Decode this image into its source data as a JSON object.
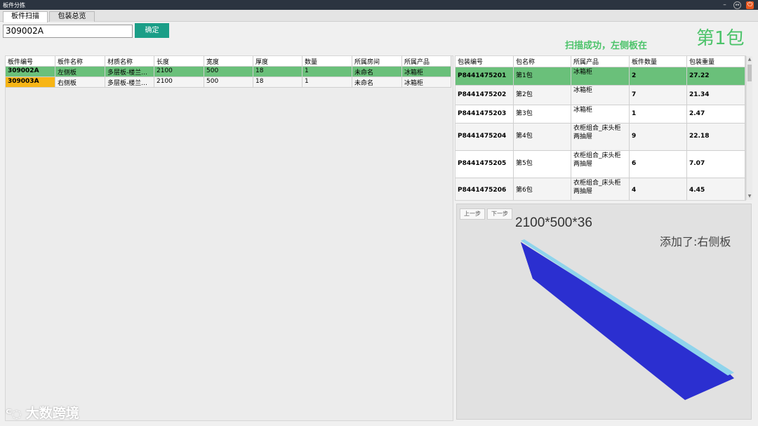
{
  "window": {
    "title": "板件分拣"
  },
  "tabs": [
    {
      "label": "板件扫描"
    },
    {
      "label": "包装总览"
    }
  ],
  "scan": {
    "value": "309002A",
    "confirm_label": "确定"
  },
  "status": {
    "message": "扫描成功，左侧板在",
    "package": "第1包"
  },
  "boards": {
    "headers": [
      "板件编号",
      "板件名称",
      "材质名称",
      "长度",
      "宽度",
      "厚度",
      "数量",
      "所属房间",
      "所属产品"
    ],
    "rows": [
      [
        "309002A",
        "左侧板",
        "多层板-楼兰...",
        "2100",
        "500",
        "18",
        "1",
        "未命名",
        "冰箱柜"
      ],
      [
        "309003A",
        "右侧板",
        "多层板-楼兰...",
        "2100",
        "500",
        "18",
        "1",
        "未命名",
        "冰箱柜"
      ]
    ]
  },
  "packages": {
    "headers": [
      "包装编号",
      "包名称",
      "所属产品",
      "板件数量",
      "包装重量"
    ],
    "rows": [
      [
        "P8441475201",
        "第1包",
        "冰箱柜",
        "2",
        "27.22"
      ],
      [
        "P8441475202",
        "第2包",
        "冰箱柜",
        "7",
        "21.34"
      ],
      [
        "P8441475203",
        "第3包",
        "冰箱柜",
        "1",
        "2.47"
      ],
      [
        "P8441475204",
        "第4包",
        "衣柜组合_床头柜两抽屉",
        "9",
        "22.18"
      ],
      [
        "P8441475205",
        "第5包",
        "衣柜组合_床头柜两抽屉",
        "6",
        "7.07"
      ],
      [
        "P8441475206",
        "第6包",
        "衣柜组合_床头柜两抽屉",
        "4",
        "4.45"
      ]
    ]
  },
  "viewer": {
    "prev_label": "上一步",
    "next_label": "下一步",
    "dimensions": "2100*500*36",
    "added_text": "添加了:右侧板",
    "panel_colors": {
      "front": "#2b2fd0",
      "edge": "#8fd4ec",
      "side": "#1d21a8"
    }
  },
  "watermark": {
    "text": "大数跨境"
  },
  "colors": {
    "selected_row": "#6ac07a",
    "highlight_row": "#f7b516",
    "accent": "#1b9e87",
    "success_text": "#4cc36a"
  }
}
